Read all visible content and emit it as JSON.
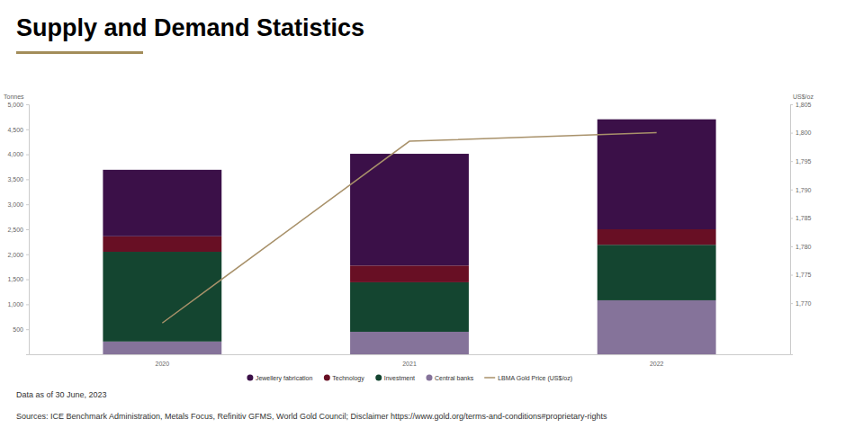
{
  "chart_data": {
    "type": "bar",
    "stacked": true,
    "title": "Supply and Demand Statistics",
    "y_label": "Tonnes",
    "y2_label": "US$/oz",
    "categories": [
      "2020",
      "2021",
      "2022"
    ],
    "series": [
      {
        "name": "Jewellery fabrication",
        "color": "#3b1048",
        "values": [
          1330,
          2235,
          2200
        ]
      },
      {
        "name": "Technology",
        "color": "#680f24",
        "values": [
          310,
          335,
          310
        ]
      },
      {
        "name": "Investment",
        "color": "#144530",
        "values": [
          1795,
          990,
          1110
        ]
      },
      {
        "name": "Central banks",
        "color": "#85739a",
        "values": [
          255,
          450,
          1080
        ]
      },
      {
        "name": "LBMA Gold Price (US$/oz)",
        "type": "line",
        "axis": "y2",
        "color": "#a8916a",
        "values": [
          1766.5,
          1798.5,
          1800
        ]
      }
    ],
    "ylim": [
      0,
      5000
    ],
    "yticks": [
      500,
      {
        "value": 1000,
        "label": "1,000"
      },
      {
        "value": 1500,
        "label": "1,500"
      },
      {
        "value": 2000,
        "label": "2,000"
      },
      {
        "value": 2500,
        "label": "2,500"
      },
      {
        "value": 3000,
        "label": "3,000"
      },
      {
        "value": 3500,
        "label": "3,500"
      },
      {
        "value": 4000,
        "label": "4,000"
      },
      {
        "value": 4500,
        "label": "4,500"
      },
      {
        "value": 5000,
        "label": "5,000"
      }
    ],
    "y2lim": [
      1761,
      1805
    ],
    "y2ticks": [
      {
        "value": 1770,
        "label": "1,770"
      },
      {
        "value": 1775,
        "label": "1,775"
      },
      {
        "value": 1780,
        "label": "1,780"
      },
      {
        "value": 1785,
        "label": "1,785"
      },
      {
        "value": 1790,
        "label": "1,790"
      },
      {
        "value": 1795,
        "label": "1,795"
      },
      {
        "value": 1800,
        "label": "1,800"
      },
      {
        "value": 1805,
        "label": "1,805"
      }
    ],
    "grid": false,
    "legend": "bottom",
    "notes": [
      "Data as of 30 June, 2023",
      "Sources: ICE Benchmark Administration, Metals Focus, Refinitiv GFMS, World Gold Council; Disclaimer https://www.gold.org/terms-and-conditions#proprietary-rights"
    ]
  }
}
